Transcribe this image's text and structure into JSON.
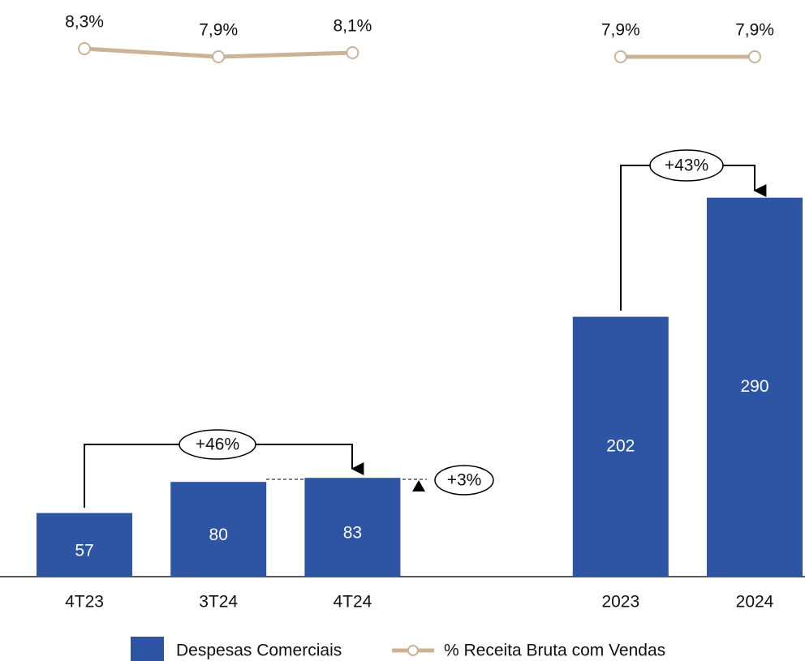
{
  "chart_data": {
    "type": "bar",
    "categories": [
      "4T23",
      "3T24",
      "4T24",
      null,
      "2023",
      "2024"
    ],
    "series": [
      {
        "name": "Despesas Comerciais",
        "type": "bar",
        "color": "#2e55a4",
        "values": [
          57,
          80,
          83,
          null,
          202,
          290
        ]
      },
      {
        "name": "% Receita Bruta com Vendas",
        "type": "line",
        "axis": "y2",
        "color": "#cbb496",
        "values": [
          8.3,
          7.9,
          8.1,
          null,
          7.9,
          7.9
        ],
        "value_labels": [
          "8,3%",
          "7,9%",
          "8,1%",
          null,
          "7,9%",
          "7,9%"
        ]
      }
    ],
    "ylim": [
      10,
      300
    ],
    "y2lim": [
      7,
      9
    ],
    "annotations": [
      "+46%",
      "+3%",
      "+43%"
    ]
  }
}
